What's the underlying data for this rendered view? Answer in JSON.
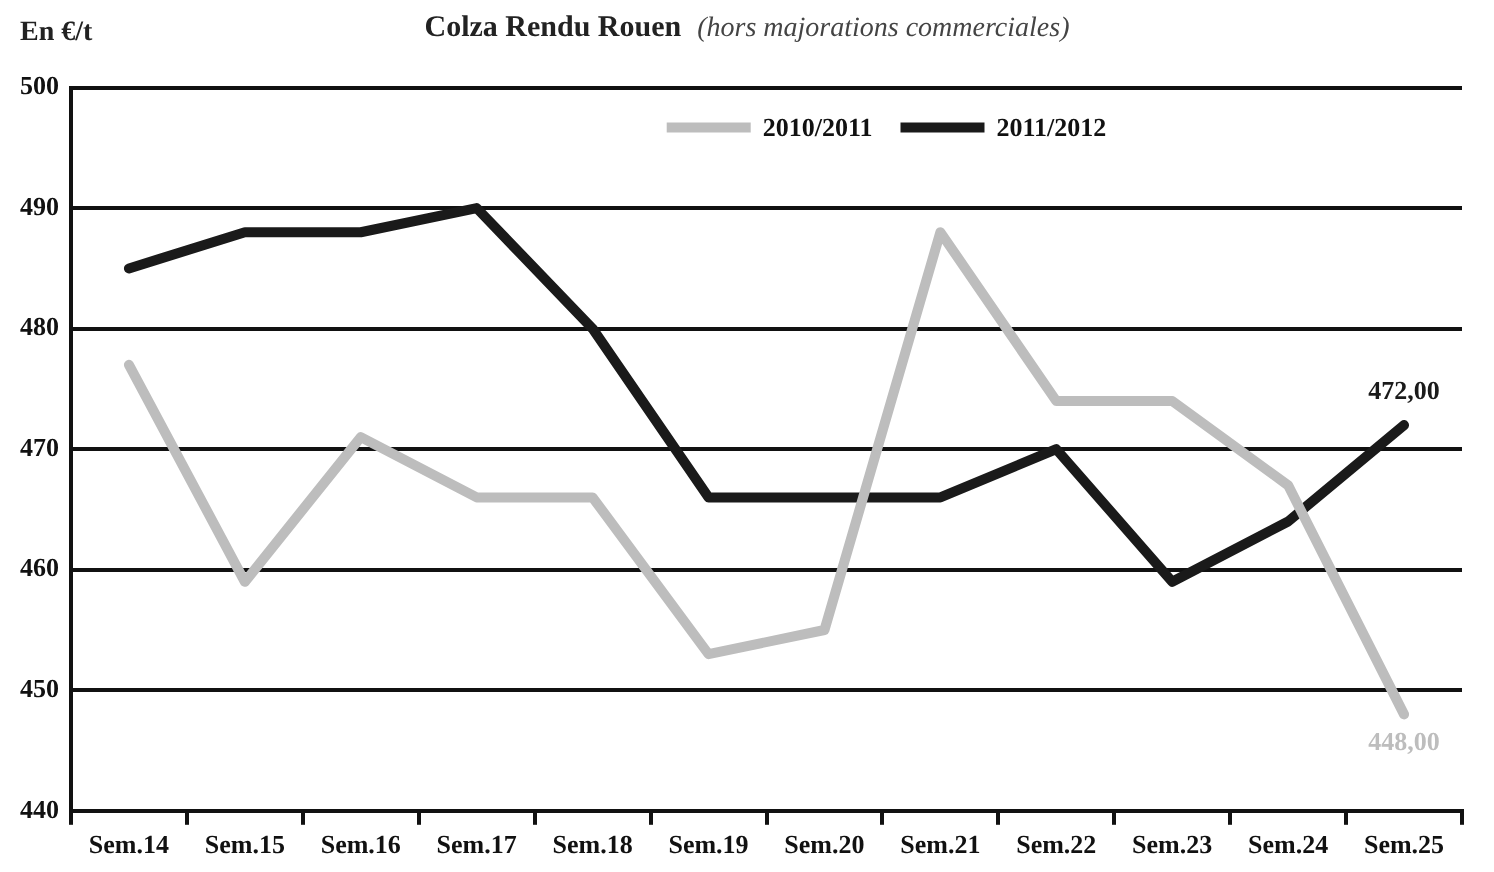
{
  "chart_data": {
    "type": "line",
    "title": "Colza Rendu Rouen",
    "subtitle": "(hors majorations commerciales)",
    "ylabel": "En €/t",
    "categories": [
      "Sem.14",
      "Sem.15",
      "Sem.16",
      "Sem.17",
      "Sem.18",
      "Sem.19",
      "Sem.20",
      "Sem.21",
      "Sem.22",
      "Sem.23",
      "Sem.24",
      "Sem.25"
    ],
    "series": [
      {
        "name": "2010/2011",
        "color": "#bdbdbd",
        "values": [
          477,
          459,
          471,
          466,
          466,
          453,
          455,
          488,
          474,
          474,
          467,
          448
        ],
        "value_labels": [
          null,
          null,
          null,
          null,
          null,
          null,
          null,
          null,
          null,
          null,
          null,
          "448,00"
        ]
      },
      {
        "name": "2011/2012",
        "color": "#1a1a1a",
        "values": [
          485,
          488,
          488,
          490,
          480,
          466,
          466,
          466,
          470,
          459,
          464,
          472
        ],
        "value_labels": [
          null,
          null,
          null,
          null,
          null,
          null,
          null,
          null,
          null,
          null,
          null,
          "472,00"
        ]
      }
    ],
    "ylim": [
      440,
      500
    ],
    "yticks": [
      440,
      450,
      460,
      470,
      480,
      490,
      500
    ],
    "grid": "y",
    "legend": "top",
    "marker": "none",
    "line_style": "solid"
  }
}
